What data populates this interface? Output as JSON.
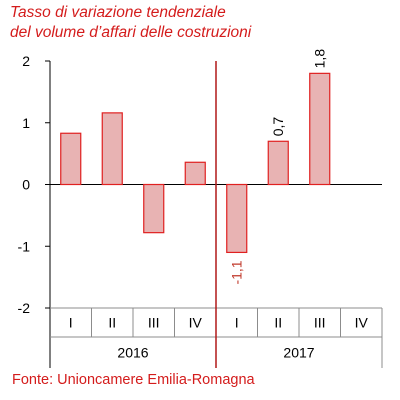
{
  "chart_data": {
    "type": "bar",
    "title_lines": [
      "Tasso di variazione tendenziale",
      "del volume d’affari delle costruzioni"
    ],
    "categories": [
      "I",
      "II",
      "III",
      "IV",
      "I",
      "II",
      "III",
      "IV"
    ],
    "year_groups": [
      {
        "label": "2016",
        "categories": [
          "I",
          "II",
          "III",
          "IV"
        ]
      },
      {
        "label": "2017",
        "categories": [
          "I",
          "II",
          "III",
          "IV"
        ]
      }
    ],
    "values": [
      0.83,
      1.16,
      -0.78,
      0.36,
      -1.1,
      0.7,
      1.8,
      null
    ],
    "data_labels": [
      "",
      "",
      "",
      "",
      "-1,1",
      "0,7",
      "1,8",
      ""
    ],
    "y_ticks": [
      "2",
      "1",
      "0",
      "-1",
      "-2"
    ],
    "ylim": [
      -2,
      2
    ],
    "grid": "vertical-separators",
    "source": "Fonte: Unioncamere Emilia-Romagna"
  },
  "colors": {
    "title": "#d41c1c",
    "bar_fill": "#e8b3b3",
    "bar_stroke": "#e02020",
    "axis": "#000000",
    "grid": "#8c8c8c",
    "year_divider": "#b01818",
    "label": "#c0392b",
    "source": "#d41c1c"
  }
}
